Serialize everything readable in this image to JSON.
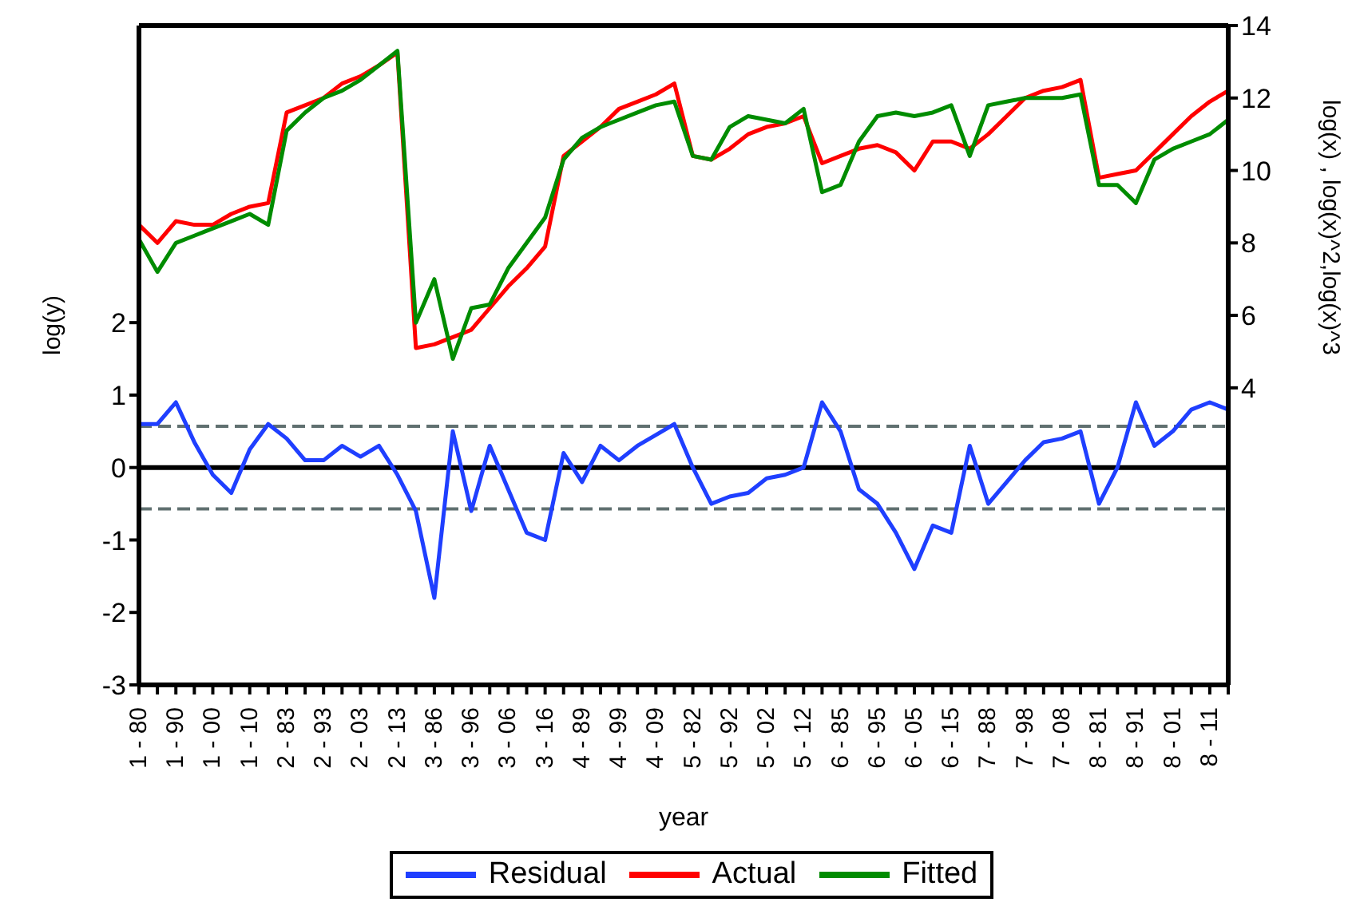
{
  "chart_data": {
    "type": "line",
    "categories": [
      "1 - 80",
      null,
      "1 - 90",
      null,
      "1 - 00",
      null,
      "1 - 10",
      null,
      "2 - 83",
      null,
      "2 - 93",
      null,
      "2 - 03",
      null,
      "2 - 13",
      null,
      "3 - 86",
      null,
      "3 - 96",
      null,
      "3 - 06",
      null,
      "3 - 16",
      null,
      "4 - 89",
      null,
      "4 - 99",
      null,
      "4 - 09",
      null,
      "5 - 82",
      null,
      "5 - 92",
      null,
      "5 - 02",
      null,
      "5 - 12",
      null,
      "6 - 85",
      null,
      "6 - 95",
      null,
      "6 - 05",
      null,
      "6 - 15",
      null,
      "7 - 88",
      null,
      "7 - 98",
      null,
      "7 - 08",
      null,
      "8 - 81",
      null,
      "8 - 91",
      null,
      "8 - 01",
      null,
      "8 - 11",
      null
    ],
    "series": [
      {
        "name": "Residual",
        "color": "#1f3fff",
        "values": [
          0.6,
          0.6,
          0.9,
          0.35,
          -0.1,
          -0.35,
          0.25,
          0.6,
          0.4,
          0.1,
          0.1,
          0.3,
          0.15,
          0.3,
          -0.1,
          -0.6,
          -1.8,
          0.5,
          -0.6,
          0.3,
          -0.3,
          -0.9,
          -1.0,
          0.2,
          -0.2,
          0.3,
          0.1,
          0.3,
          0.45,
          0.6,
          0.0,
          -0.5,
          -0.4,
          -0.35,
          -0.15,
          -0.1,
          0.0,
          0.9,
          0.5,
          -0.3,
          -0.5,
          -0.9,
          -1.4,
          -0.8,
          -0.9,
          0.3,
          -0.5,
          -0.2,
          0.1,
          0.35,
          0.4,
          0.5,
          -0.5,
          0.0,
          0.9,
          0.3,
          0.5,
          0.8,
          0.9,
          0.8
        ]
      },
      {
        "name": "Actual",
        "color": "#ff0000",
        "axis": "y2",
        "values": [
          8.5,
          8.0,
          8.6,
          8.5,
          8.5,
          8.8,
          9.0,
          9.1,
          11.6,
          11.8,
          12.0,
          12.4,
          12.6,
          12.9,
          13.25,
          5.1,
          5.2,
          5.4,
          5.6,
          6.2,
          6.8,
          7.3,
          7.9,
          10.4,
          10.8,
          11.2,
          11.7,
          11.9,
          12.1,
          12.4,
          10.4,
          10.3,
          10.6,
          11.0,
          11.2,
          11.3,
          11.5,
          10.2,
          10.4,
          10.6,
          10.7,
          10.5,
          10.0,
          10.8,
          10.8,
          10.6,
          11.0,
          11.5,
          12.0,
          12.2,
          12.3,
          12.5,
          9.8,
          9.9,
          10.0,
          10.5,
          11.0,
          11.5,
          11.9,
          12.2
        ]
      },
      {
        "name": "Fitted",
        "color": "#008c00",
        "axis": "y2",
        "values": [
          8.1,
          7.2,
          8.0,
          8.2,
          8.4,
          8.6,
          8.8,
          8.5,
          11.1,
          11.6,
          12.0,
          12.2,
          12.5,
          12.9,
          13.3,
          5.8,
          7.0,
          4.8,
          6.2,
          6.3,
          7.3,
          8.0,
          8.7,
          10.3,
          10.9,
          11.2,
          11.4,
          11.6,
          11.8,
          11.9,
          10.4,
          10.3,
          11.2,
          11.5,
          11.4,
          11.3,
          11.7,
          9.4,
          9.6,
          10.8,
          11.5,
          11.6,
          11.5,
          11.6,
          11.8,
          10.4,
          11.8,
          11.9,
          12.0,
          12.0,
          12.0,
          12.1,
          9.6,
          9.6,
          9.1,
          10.3,
          10.6,
          10.8,
          11.0,
          11.4
        ]
      }
    ],
    "xlabel": "year",
    "ylabel": "log(y)",
    "y2label": "log(x) , log(x)^2,log(x)^3",
    "ylim": [
      -3,
      6.1
    ],
    "yticks": [
      -3,
      -2,
      -1,
      0,
      1,
      2
    ],
    "y2lim": [
      -4.2,
      14
    ],
    "y2ticks": [
      4,
      6,
      8,
      10,
      12,
      14
    ],
    "ref_lines": [
      {
        "axis": "y",
        "value": 0,
        "color": "#000000",
        "line_style": "solid"
      },
      {
        "axis": "y",
        "value": 0.57,
        "color": "#607070",
        "line_style": "dashed"
      },
      {
        "axis": "y",
        "value": -0.57,
        "color": "#607070",
        "line_style": "dashed"
      }
    ],
    "grid": false,
    "legend": "bottom",
    "marker": "none"
  }
}
